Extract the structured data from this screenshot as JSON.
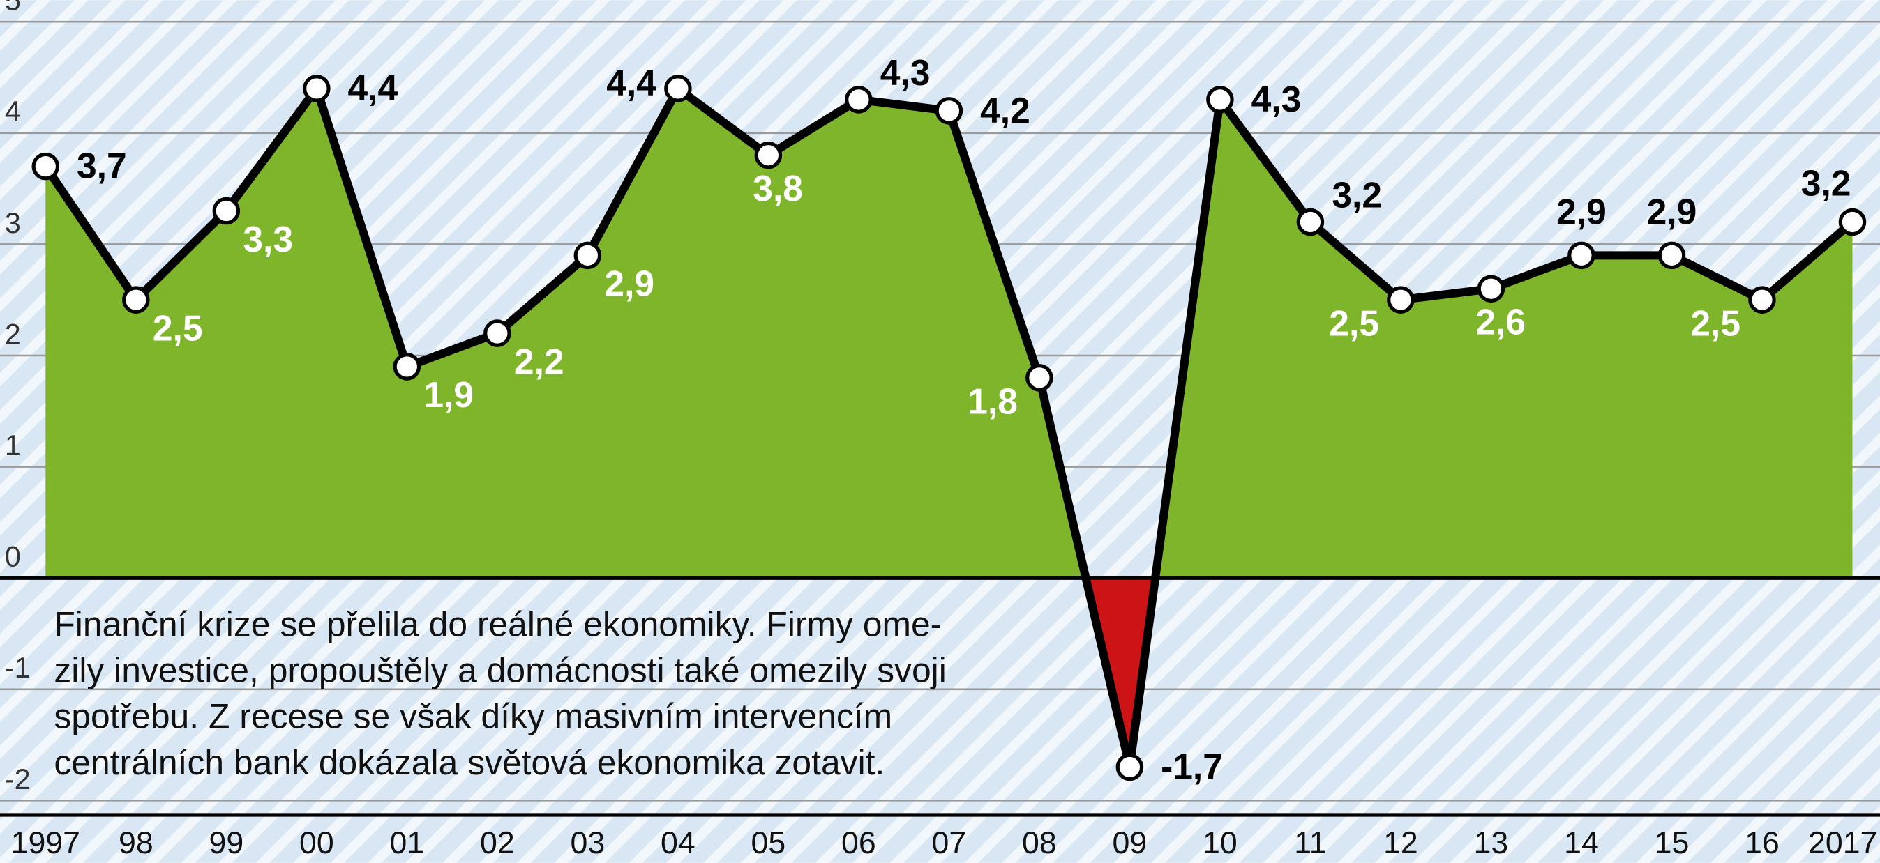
{
  "chart_data": {
    "type": "line",
    "categories": [
      "1997",
      "98",
      "99",
      "00",
      "01",
      "02",
      "03",
      "04",
      "05",
      "06",
      "07",
      "08",
      "09",
      "10",
      "11",
      "12",
      "13",
      "14",
      "15",
      "16",
      "2017"
    ],
    "series": [
      {
        "name": null,
        "color": "#000000",
        "values": [
          3.7,
          2.5,
          3.3,
          4.4,
          1.9,
          2.2,
          2.9,
          4.4,
          3.8,
          4.3,
          4.2,
          1.8,
          -1.7,
          4.3,
          3.2,
          2.5,
          2.6,
          2.9,
          2.9,
          2.5,
          3.2
        ],
        "value_labels": [
          "3,7",
          "2,5",
          "3,3",
          "4,4",
          "1,9",
          "2,2",
          "2,9",
          "4,4",
          "3,8",
          "4,3",
          "4,2",
          "1,8",
          "-1,7",
          "4,3",
          "3,2",
          "2,5",
          "2,6",
          "2,9",
          "2,9",
          "2,5",
          "3,2"
        ]
      }
    ],
    "positive_color": "#7fb52a",
    "negative_color": "#cc1417",
    "ylim": [
      -2,
      5
    ],
    "yticks": [
      5,
      4,
      3,
      2,
      1,
      0,
      -1,
      -2
    ],
    "grid": true,
    "annotation": [
      "Finanční krize se přelila do reálné ekonomiky. Firmy ome-",
      "zily investice, propouštěly a domácnosti také omezily svoji",
      "spotřebu. Z recese se však díky masivním intervencím",
      "centrálních bank dokázala světová ekonomika zotavit."
    ]
  }
}
